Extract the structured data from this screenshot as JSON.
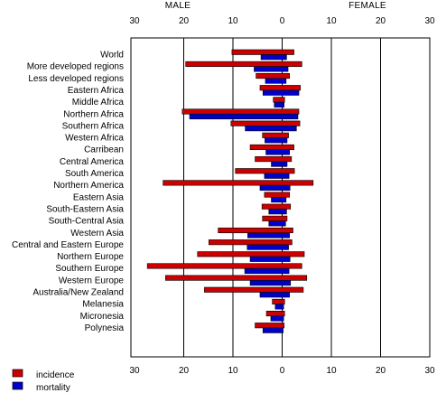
{
  "chart_data": {
    "type": "bar",
    "orientation": "horizontal",
    "layout": "population-pyramid",
    "side_labels": {
      "left": "MALE",
      "right": "FEMALE"
    },
    "tick_labels": [
      "30",
      "20",
      "10",
      "0",
      "10",
      "20",
      "30"
    ],
    "xlim": [
      -30,
      30
    ],
    "grid": true,
    "legend_position": "bottom-left",
    "categories": [
      "World",
      "More developed regions",
      "Less developed regions",
      "Eastern Africa",
      "Middle Africa",
      "Northern Africa",
      "Southern Africa",
      "Western Africa",
      "Carribean",
      "Central America",
      "South America",
      "Northern America",
      "Eastern Asia",
      "South-Eastern Asia",
      "South-Central Asia",
      "Western Asia",
      "Central and Eastern Europe",
      "Northern Europe",
      "Southern Europe",
      "Western Europe",
      "Australia/New Zealand",
      "Melanesia",
      "Micronesia",
      "Polynesia"
    ],
    "series": [
      {
        "name": "incidence",
        "color": "#cc0000",
        "male": [
          10.2,
          19.6,
          5.3,
          4.5,
          1.8,
          20.3,
          10.4,
          4.0,
          6.5,
          5.5,
          9.5,
          24.2,
          3.6,
          4.1,
          4.0,
          13.0,
          14.9,
          17.2,
          27.4,
          23.7,
          15.8,
          2.0,
          3.2,
          5.5
        ],
        "female": [
          2.4,
          4.0,
          1.5,
          3.7,
          0.5,
          3.4,
          3.6,
          1.3,
          2.4,
          1.9,
          2.5,
          6.3,
          1.5,
          1.7,
          1.0,
          2.2,
          2.0,
          4.5,
          4.0,
          5.0,
          4.3,
          0.5,
          0.5,
          0.4
        ]
      },
      {
        "name": "mortality",
        "color": "#0000cc",
        "male": [
          4.3,
          5.7,
          3.4,
          3.9,
          1.6,
          18.8,
          7.5,
          3.5,
          3.3,
          2.2,
          3.6,
          4.5,
          2.2,
          2.7,
          2.7,
          7.0,
          7.1,
          6.5,
          7.6,
          6.5,
          4.5,
          1.4,
          2.3,
          3.9
        ],
        "female": [
          0.9,
          1.2,
          0.8,
          3.4,
          0.4,
          3.2,
          2.9,
          1.0,
          1.5,
          1.0,
          1.4,
          1.6,
          0.8,
          0.9,
          0.7,
          1.5,
          1.3,
          1.6,
          1.4,
          1.7,
          1.5,
          0.3,
          0.3,
          0.2
        ]
      }
    ]
  },
  "colors": {
    "incidence": "#cc0000",
    "mortality": "#0000cc",
    "frame": "#000000",
    "background": "#ffffff"
  }
}
